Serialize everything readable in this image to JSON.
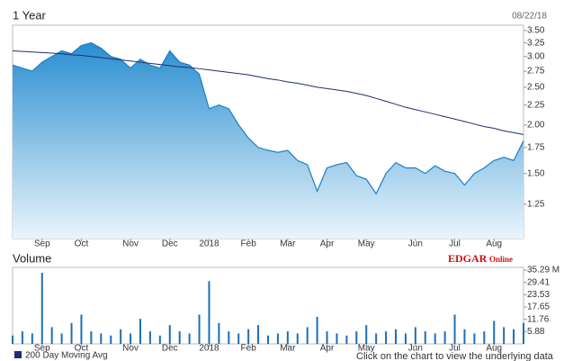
{
  "chart_data": [
    {
      "type": "area",
      "title": "1 Year",
      "subtitle": "08/22/18",
      "categories": [
        null,
        null,
        null,
        "Sep",
        null,
        null,
        null,
        "Oct",
        null,
        null,
        null,
        null,
        "Nov",
        null,
        null,
        null,
        "Dec",
        null,
        null,
        null,
        "2018",
        null,
        null,
        null,
        "Feb",
        null,
        null,
        null,
        "Mar",
        null,
        null,
        null,
        "Apr",
        null,
        null,
        null,
        "May",
        null,
        null,
        null,
        null,
        "Jun",
        null,
        null,
        null,
        "Jul",
        null,
        null,
        null,
        "Aug",
        null,
        null,
        null
      ],
      "series": [
        {
          "color": "#1b7fc4",
          "values": [
            2.85,
            2.8,
            2.75,
            2.9,
            3.0,
            3.1,
            3.05,
            3.2,
            3.25,
            3.15,
            3.0,
            2.95,
            2.8,
            2.95,
            2.85,
            2.8,
            3.1,
            2.9,
            2.85,
            2.7,
            2.2,
            2.25,
            2.2,
            2.0,
            1.85,
            1.75,
            1.72,
            1.7,
            1.72,
            1.62,
            1.58,
            1.35,
            1.55,
            1.58,
            1.6,
            1.48,
            1.45,
            1.33,
            1.5,
            1.6,
            1.55,
            1.55,
            1.5,
            1.57,
            1.52,
            1.5,
            1.4,
            1.5,
            1.55,
            1.62,
            1.65,
            1.62,
            1.82
          ]
        },
        {
          "name": "200 Day Moving Avg",
          "color": "#1f2f6b",
          "values": [
            3.1,
            3.09,
            3.08,
            3.07,
            3.06,
            3.05,
            3.03,
            3.02,
            3.0,
            2.98,
            2.96,
            2.94,
            2.92,
            2.9,
            2.88,
            2.86,
            2.84,
            2.82,
            2.81,
            2.79,
            2.77,
            2.75,
            2.73,
            2.71,
            2.69,
            2.66,
            2.63,
            2.61,
            2.58,
            2.56,
            2.53,
            2.5,
            2.48,
            2.46,
            2.44,
            2.41,
            2.38,
            2.34,
            2.3,
            2.26,
            2.22,
            2.19,
            2.16,
            2.13,
            2.1,
            2.07,
            2.04,
            2.01,
            1.98,
            1.96,
            1.93,
            1.91,
            1.89
          ]
        }
      ],
      "log_scale": true,
      "ylim": [
        1.02,
        3.61
      ],
      "yticks": [
        {
          "value": 1.25,
          "label": "1.25"
        },
        {
          "value": 1.5,
          "label": "1.50"
        },
        {
          "value": 1.75,
          "label": "1.75"
        },
        {
          "value": 2,
          "label": "2.00"
        },
        {
          "value": 2.25,
          "label": "2.25"
        },
        {
          "value": 2.5,
          "label": "2.50"
        },
        {
          "value": 2.75,
          "label": "2.75"
        },
        {
          "value": 3,
          "label": "3.00"
        },
        {
          "value": 3.25,
          "label": "3.25"
        },
        {
          "value": 3.5,
          "label": "3.50"
        }
      ]
    },
    {
      "type": "bar",
      "title": "Volume",
      "color": "#1b6fb8",
      "categories": [
        null,
        null,
        null,
        "Sep",
        null,
        null,
        null,
        "Oct",
        null,
        null,
        null,
        null,
        "Nov",
        null,
        null,
        null,
        "Dec",
        null,
        null,
        null,
        "2018",
        null,
        null,
        null,
        "Feb",
        null,
        null,
        null,
        "Mar",
        null,
        null,
        null,
        "Apr",
        null,
        null,
        null,
        "May",
        null,
        null,
        null,
        null,
        "Jun",
        null,
        null,
        null,
        "Jul",
        null,
        null,
        null,
        "Aug",
        null,
        null,
        null
      ],
      "values": [
        4,
        6,
        5,
        34,
        8,
        5,
        10,
        14,
        6,
        5,
        4,
        7,
        5,
        12,
        6,
        4,
        9,
        6,
        5,
        14,
        30,
        10,
        6,
        5,
        7,
        9,
        4,
        5,
        6,
        5,
        8,
        13,
        6,
        5,
        4,
        6,
        9,
        5,
        6,
        7,
        5,
        8,
        6,
        5,
        6,
        14,
        7,
        5,
        6,
        11,
        8,
        7,
        10
      ],
      "ylim": [
        0,
        36.6
      ],
      "yticks": [
        5.88,
        11.76,
        17.65,
        23.53,
        29.41,
        {
          "value": 35.29,
          "label": "35.29 M"
        }
      ]
    }
  ],
  "logo": {
    "name": "EDGAR",
    "suffix": "Online"
  },
  "footer_note": "Click on the chart to view the underlying data"
}
